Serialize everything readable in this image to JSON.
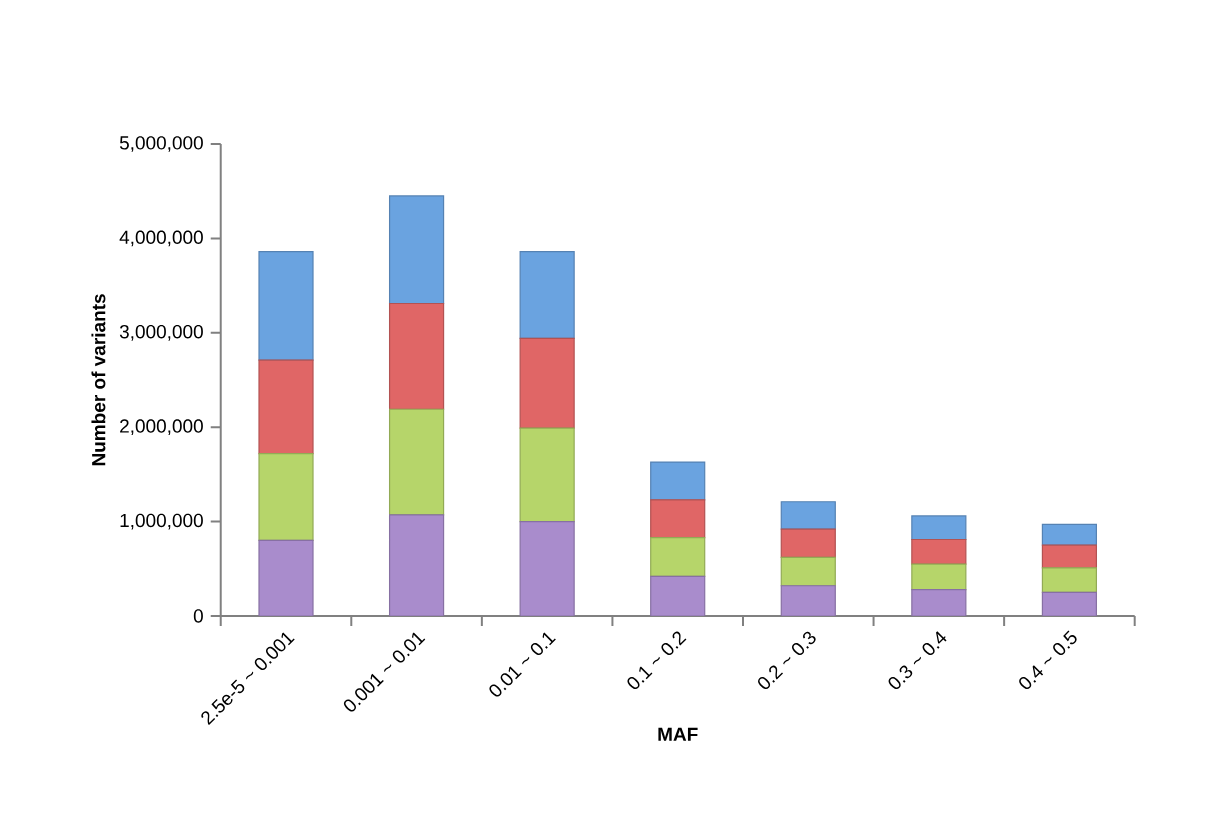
{
  "chart_data": {
    "type": "bar",
    "stacked": true,
    "xlabel": "MAF",
    "ylabel": "Number of variants",
    "categories": [
      "2.5e-5 ~ 0.001",
      "0.001 ~ 0.01",
      "0.01 ~ 0.1",
      "0.1 ~ 0.2",
      "0.2 ~ 0.3",
      "0.3 ~ 0.4",
      "0.4 ~ 0.5"
    ],
    "series": [
      {
        "color": "#a98ccc",
        "values": [
          800000,
          1070000,
          1000000,
          420000,
          320000,
          280000,
          250000
        ]
      },
      {
        "color": "#b6d56a",
        "values": [
          920000,
          1120000,
          990000,
          410000,
          300000,
          270000,
          260000
        ]
      },
      {
        "color": "#e06666",
        "values": [
          990000,
          1120000,
          950000,
          400000,
          300000,
          260000,
          240000
        ]
      },
      {
        "color": "#6aa3e0",
        "values": [
          1150000,
          1140000,
          920000,
          400000,
          290000,
          250000,
          220000
        ]
      }
    ],
    "ylim": [
      0,
      5000000
    ],
    "yticks": [
      0,
      {
        "value": 1000000,
        "label": "1,000,000"
      },
      {
        "value": 2000000,
        "label": "2,000,000"
      },
      {
        "value": 3000000,
        "label": "3,000,000"
      },
      {
        "value": 4000000,
        "label": "4,000,000"
      },
      {
        "value": 5000000,
        "label": "5,000,000"
      }
    ],
    "grid": false
  }
}
